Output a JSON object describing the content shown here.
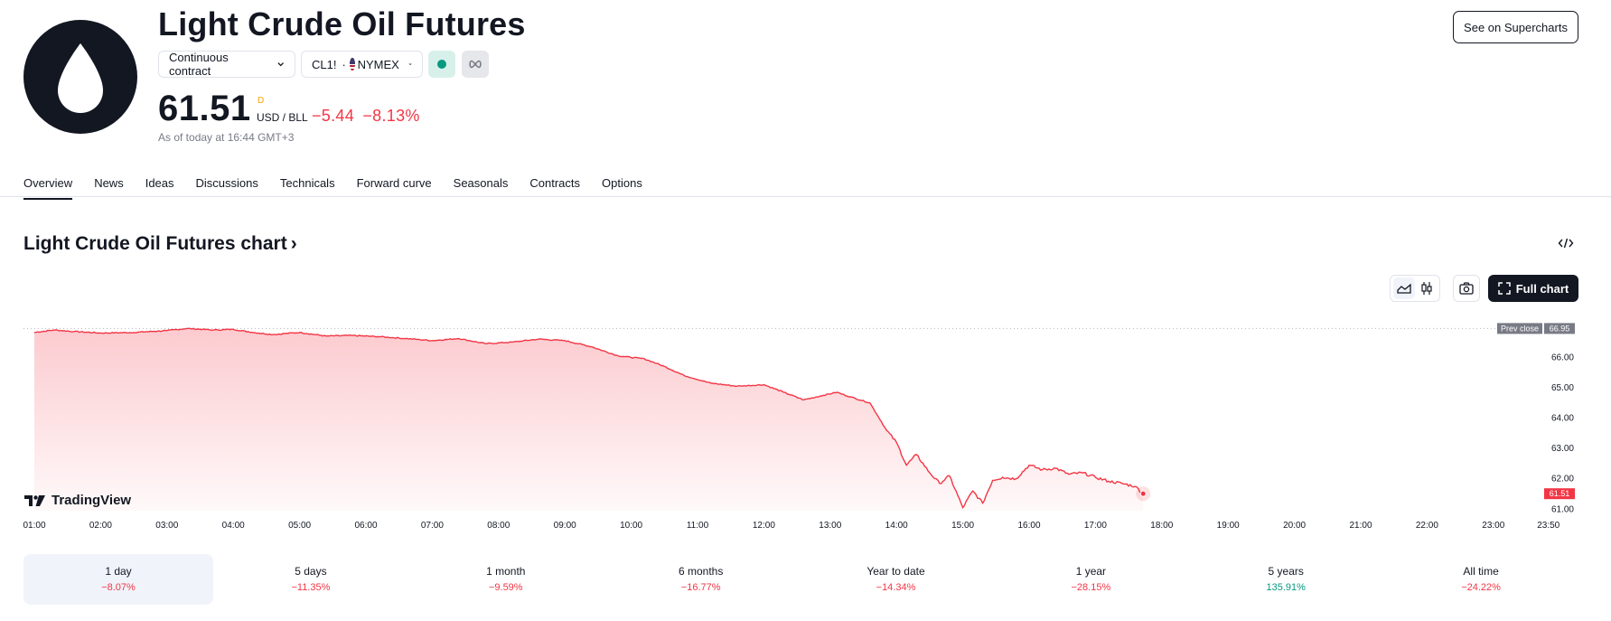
{
  "header": {
    "title": "Light Crude Oil Futures",
    "contract_selector": "Continuous contract",
    "symbol": "CL1!",
    "symbol_sep": "·",
    "exchange": "NYMEX",
    "see_supercharts": "See on Supercharts"
  },
  "quote": {
    "price": "61.51",
    "timeframe_flag": "D",
    "unit": "USD / BLL",
    "change": "−5.44",
    "change_pct": "−8.13%",
    "as_of": "As of today at 16:44 GMT+3"
  },
  "tabs": [
    "Overview",
    "News",
    "Ideas",
    "Discussions",
    "Technicals",
    "Forward curve",
    "Seasonals",
    "Contracts",
    "Options"
  ],
  "chart_section": {
    "title": "Light Crude Oil Futures chart",
    "title_chevron": "›",
    "full_chart": "Full chart",
    "branding": "TradingView"
  },
  "colors": {
    "down": "#f23645",
    "up": "#089981",
    "text": "#131722",
    "muted": "#787b86"
  },
  "chart_data": {
    "type": "area",
    "x_ticks": [
      "01:00",
      "02:00",
      "03:00",
      "04:00",
      "05:00",
      "06:00",
      "07:00",
      "08:00",
      "09:00",
      "10:00",
      "11:00",
      "12:00",
      "13:00",
      "14:00",
      "15:00",
      "16:00",
      "17:00",
      "18:00",
      "19:00",
      "20:00",
      "21:00",
      "22:00",
      "23:00",
      "23:50"
    ],
    "y_ticks": [
      "66.00",
      "65.00",
      "64.00",
      "63.00",
      "62.00",
      "61.00"
    ],
    "ylim": [
      60.95,
      67.2
    ],
    "prev_close_label": "Prev close",
    "prev_close": 66.95,
    "prev_close_text": "66.95",
    "last_price": 61.51,
    "last_price_text": "61.51",
    "series": [
      {
        "time_hours": [
          0,
          0.3,
          0.6,
          1.0,
          1.5,
          2.0,
          2.3,
          2.7,
          3.0,
          3.3,
          3.6,
          4.0,
          4.4,
          4.8,
          5.2,
          5.6,
          6.0,
          6.4,
          6.8,
          7.2,
          7.6,
          8.0,
          8.4,
          8.8,
          9.2,
          9.5,
          9.8,
          10.2,
          10.6,
          11.0,
          11.3,
          11.6,
          11.9,
          12.1,
          12.3,
          12.6,
          12.85,
          13.0,
          13.15,
          13.3,
          13.5,
          13.65,
          13.8,
          14.0,
          14.15,
          14.3,
          14.45,
          14.6,
          14.8,
          15.0,
          15.2,
          15.4,
          15.6,
          15.8,
          16.0,
          16.2,
          16.4,
          16.6,
          16.72
        ],
        "values": [
          66.82,
          66.9,
          66.85,
          66.8,
          66.82,
          66.88,
          66.95,
          66.9,
          66.92,
          66.82,
          66.75,
          66.82,
          66.7,
          66.72,
          66.68,
          66.62,
          66.55,
          66.62,
          66.45,
          66.5,
          66.6,
          66.55,
          66.35,
          66.05,
          65.95,
          65.7,
          65.4,
          65.15,
          65.05,
          65.1,
          64.85,
          64.6,
          64.75,
          64.85,
          64.7,
          64.5,
          63.6,
          63.2,
          62.45,
          62.8,
          62.2,
          61.85,
          62.1,
          61.05,
          61.6,
          61.2,
          61.95,
          62.05,
          62.0,
          62.45,
          62.3,
          62.35,
          62.15,
          62.2,
          62.05,
          61.92,
          61.85,
          61.75,
          61.51
        ]
      }
    ]
  },
  "periods": [
    {
      "label": "1 day",
      "value": "−8.07%",
      "dir": "down"
    },
    {
      "label": "5 days",
      "value": "−11.35%",
      "dir": "down"
    },
    {
      "label": "1 month",
      "value": "−9.59%",
      "dir": "down"
    },
    {
      "label": "6 months",
      "value": "−16.77%",
      "dir": "down"
    },
    {
      "label": "Year to date",
      "value": "−14.34%",
      "dir": "down"
    },
    {
      "label": "1 year",
      "value": "−28.15%",
      "dir": "down"
    },
    {
      "label": "5 years",
      "value": "135.91%",
      "dir": "up"
    },
    {
      "label": "All time",
      "value": "−24.22%",
      "dir": "down"
    }
  ]
}
